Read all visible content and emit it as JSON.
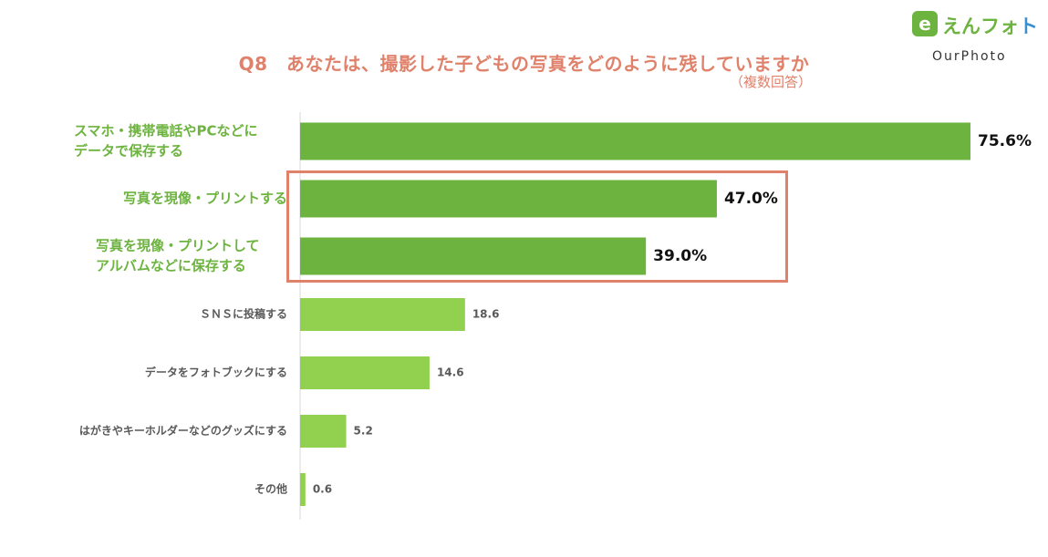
{
  "title": "Q8　あなたは、撮影した子どもの写真をどのように残していますか",
  "subtitle": "（複数回答）",
  "logo": {
    "mark": "e",
    "text_main": "えんフォ",
    "text_accent": "ト",
    "sub": "OurPhoto"
  },
  "colors": {
    "primary_bar": "#6db33f",
    "secondary_bar": "#92d050",
    "primary_label": "#6db33f",
    "secondary_label": "#595959",
    "highlight_frame": "#e0826b",
    "title": "#e0826b"
  },
  "chart_data": {
    "type": "bar",
    "orientation": "horizontal",
    "title": "Q8　あなたは、撮影した子どもの写真をどのように残していますか",
    "subtitle": "（複数回答）",
    "categories": [
      [
        "スマホ・携帯電話やPCなどに",
        "データで保存する"
      ],
      [
        "写真を現像・プリントする"
      ],
      [
        "写真を現像・プリントして",
        "アルバムなどに保存する"
      ],
      [
        "ＳＮＳに投稿する"
      ],
      [
        "データをフォトブックにする"
      ],
      [
        "はがきやキーホルダーなどのグッズにする"
      ],
      [
        "その他"
      ]
    ],
    "values": [
      75.6,
      47.0,
      39.0,
      18.6,
      14.6,
      5.2,
      0.6
    ],
    "value_labels": [
      "75.6%",
      "47.0%",
      "39.0%",
      "18.6",
      "14.6",
      "5.2",
      "0.6"
    ],
    "emphasis": [
      true,
      true,
      true,
      false,
      false,
      false,
      false
    ],
    "highlighted": [
      1,
      2
    ],
    "xlim": [
      0,
      80
    ],
    "grid": false,
    "legend": "none"
  }
}
